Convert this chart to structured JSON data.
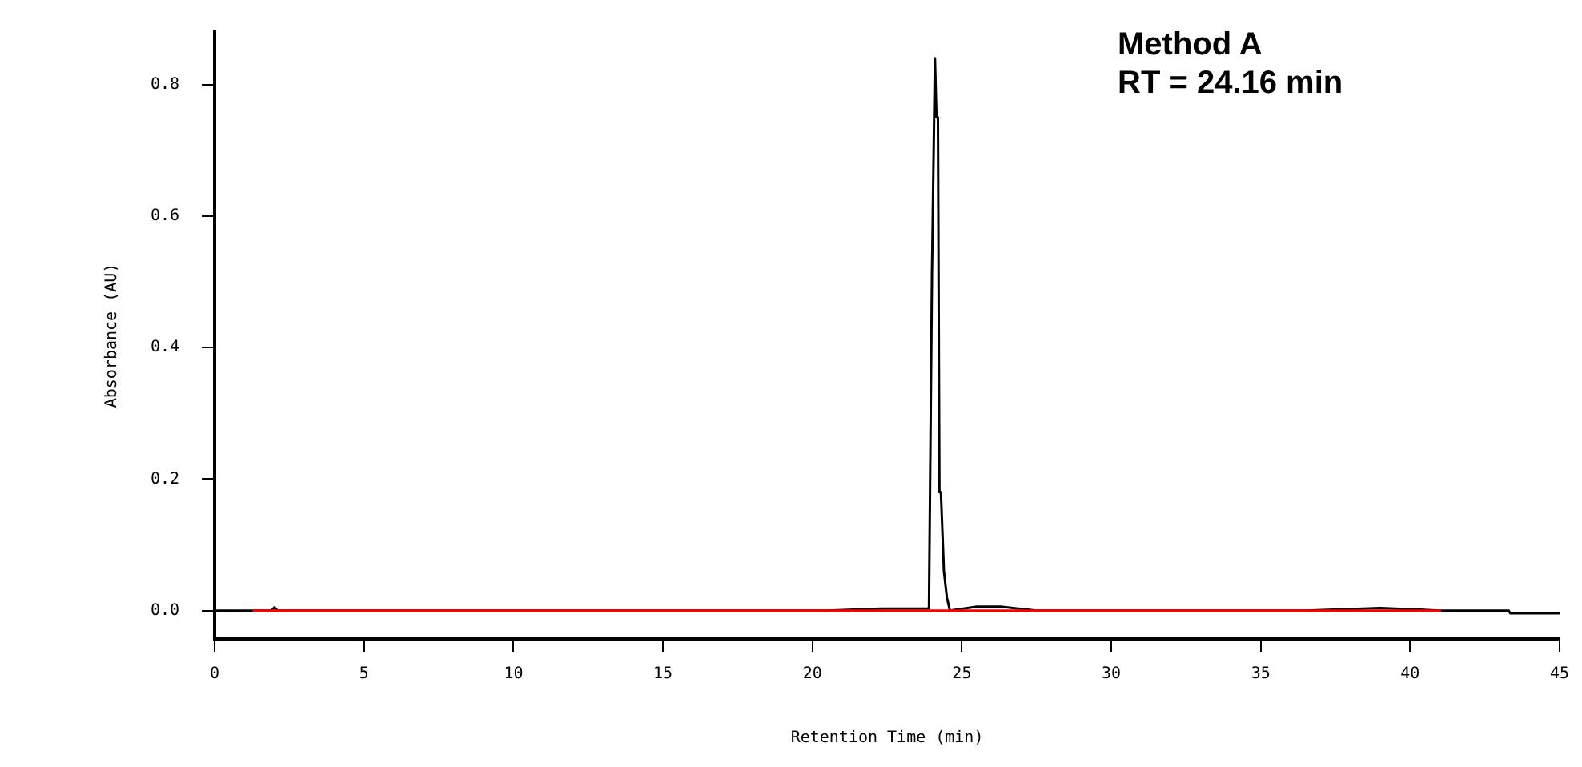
{
  "chart_data": {
    "type": "line",
    "xlabel": "Retention Time (min)",
    "ylabel": "Absorbance (AU)",
    "annotations": [
      "Method A",
      "RT = 24.16 min"
    ],
    "xlim": [
      0,
      45
    ],
    "xticks": [
      0,
      5,
      10,
      15,
      20,
      25,
      30,
      35,
      40,
      45
    ],
    "ylim": [
      -0.043,
      0.88
    ],
    "yticks": [
      {
        "value": 0,
        "label": "0.0"
      },
      {
        "value": 0.2,
        "label": "0.2"
      },
      {
        "value": 0.4,
        "label": "0.4"
      },
      {
        "value": 0.6,
        "label": "0.6"
      },
      {
        "value": 0.8,
        "label": "0.8"
      }
    ],
    "grid": false,
    "legend": false,
    "marker": "none",
    "line_style": "solid",
    "series": [
      {
        "color": "#000000",
        "x": [
          0,
          1.9,
          2.0,
          2.1,
          7.8,
          20.5,
          22.3,
          23.9,
          24.0,
          24.05,
          24.1,
          24.15,
          24.2,
          24.25,
          24.3,
          24.4,
          24.5,
          24.6,
          25.5,
          26.3,
          27.5,
          28.5,
          30.0,
          33.0,
          35.0,
          36.5,
          39.0,
          41.0,
          43.3,
          43.35,
          45
        ],
        "values": [
          0,
          0,
          0.005,
          0,
          0,
          0,
          0.003,
          0.003,
          0.51,
          0.51,
          0.84,
          0.75,
          0.75,
          0.18,
          0.18,
          0.06,
          0.02,
          0,
          0.006,
          0.006,
          0,
          0,
          0,
          0,
          0,
          0,
          0.004,
          0,
          0,
          -0.004,
          -0.004
        ]
      },
      {
        "color": "#ff0000",
        "x": [
          1.3,
          41.0
        ],
        "values": [
          0,
          0
        ]
      }
    ]
  }
}
